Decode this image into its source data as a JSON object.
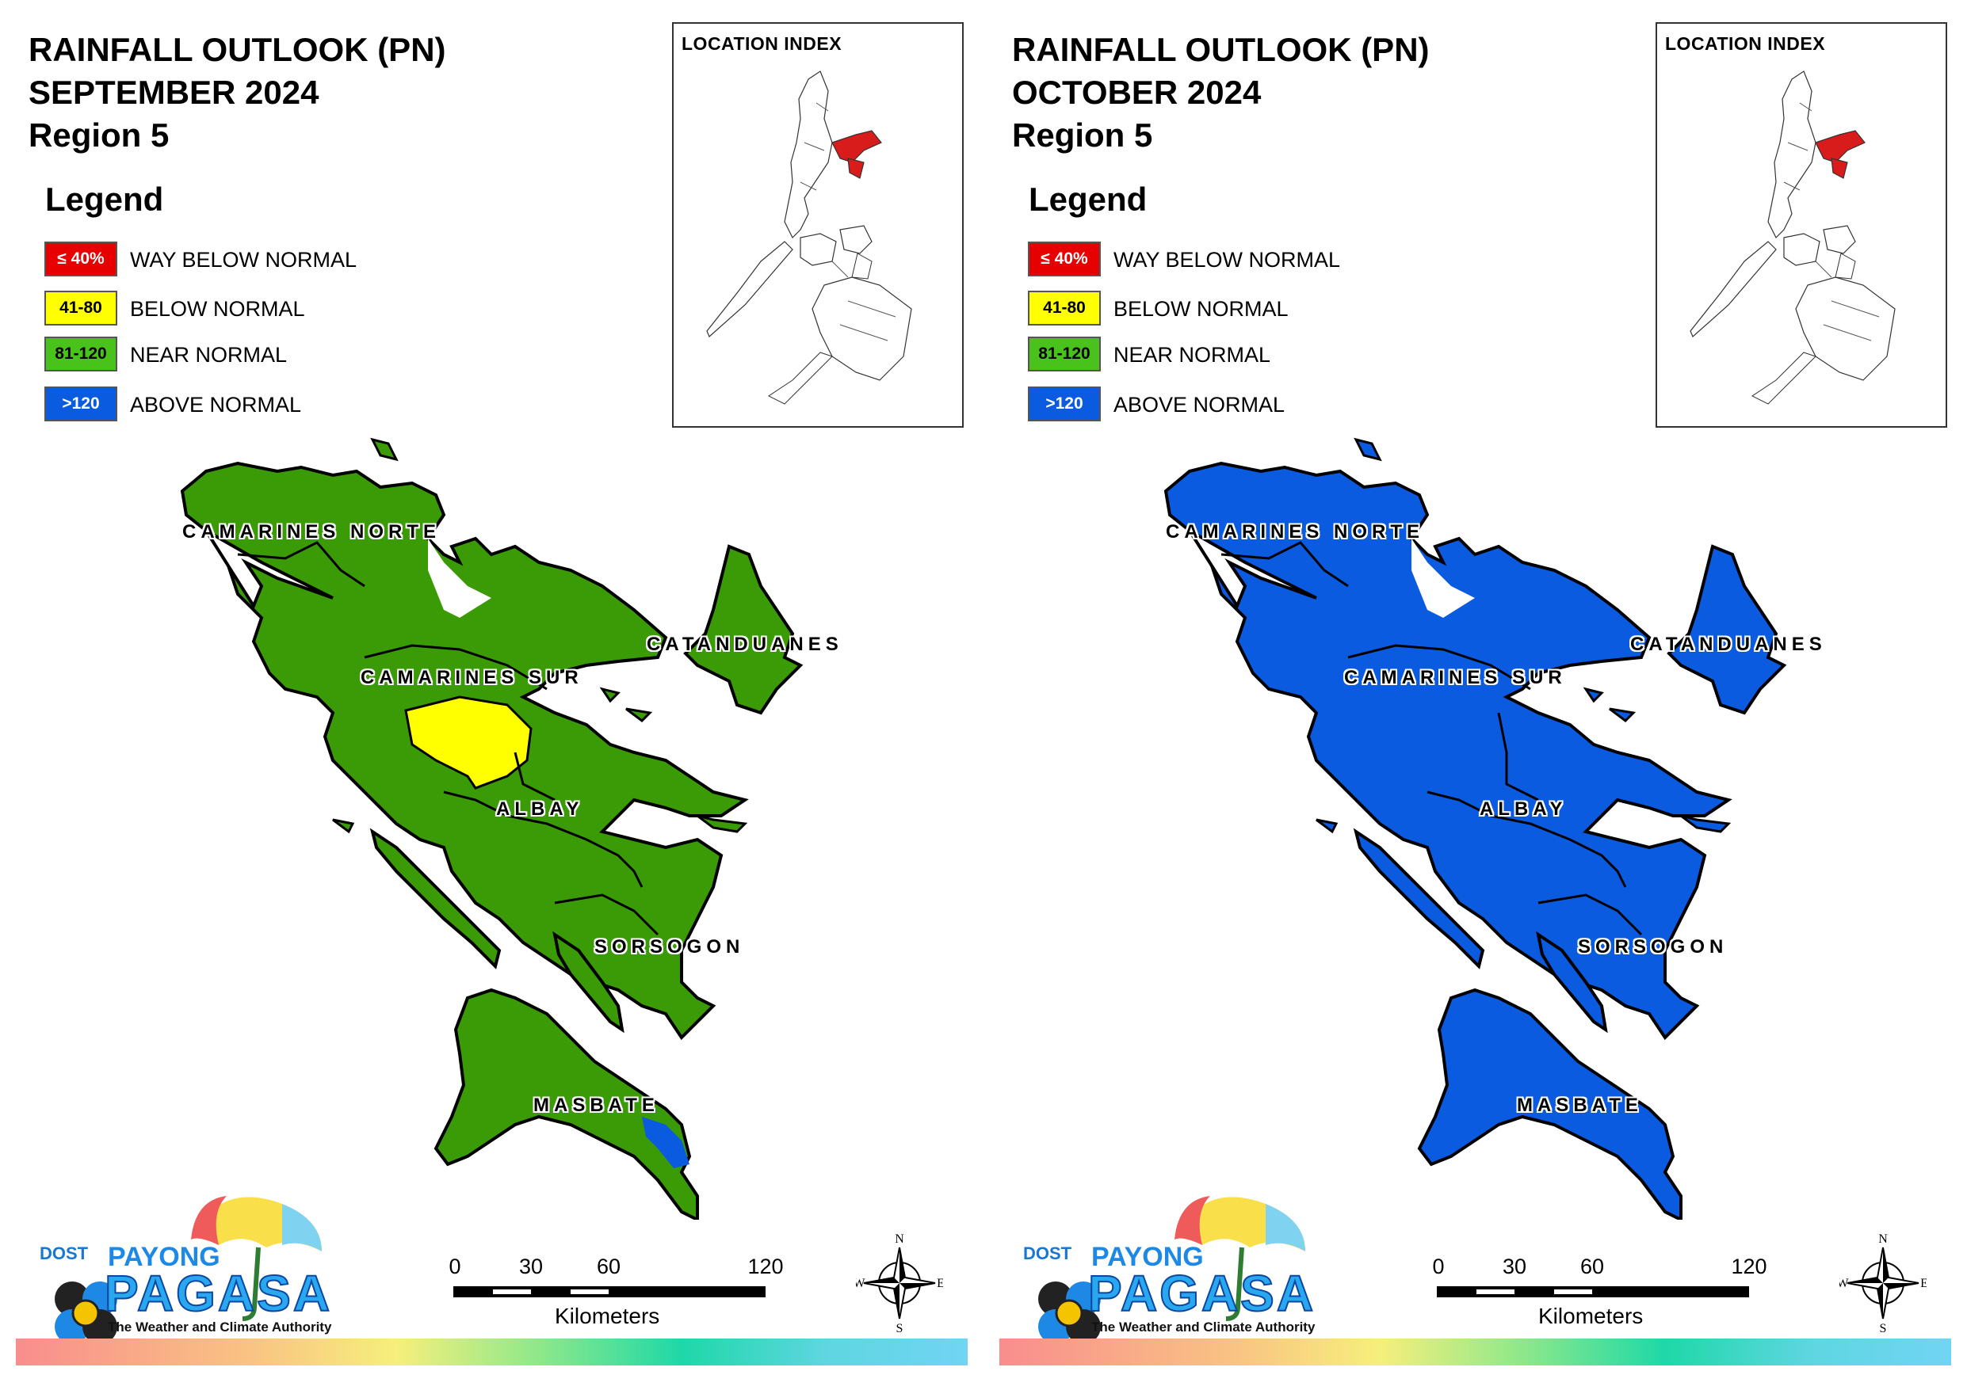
{
  "colors": {
    "way_below_normal": "#e60000",
    "below_normal": "#ffff00",
    "near_normal": "#3a9b07",
    "above_normal": "#0b5be0"
  },
  "legend": {
    "title": "Legend",
    "items": [
      {
        "range": "≤ 40%",
        "label": "WAY BELOW NORMAL",
        "color_key": "way_below_normal"
      },
      {
        "range": "41-80",
        "label": "BELOW NORMAL",
        "color_key": "below_normal"
      },
      {
        "range": "81-120",
        "label": "NEAR NORMAL",
        "color_key": "near_normal"
      },
      {
        "range": ">120",
        "label": "ABOVE NORMAL",
        "color_key": "above_normal"
      }
    ]
  },
  "inset": {
    "title": "LOCATION INDEX",
    "highlight_color": "#d81b1b"
  },
  "province_labels": [
    "CAMARINES NORTE",
    "CATANDUANES",
    "CAMARINES SUR",
    "ALBAY",
    "SORSOGON",
    "MASBATE"
  ],
  "scale": {
    "ticks": [
      "0",
      "30",
      "60",
      "120"
    ],
    "units": "Kilometers"
  },
  "compass": {
    "n": "N",
    "s": "S",
    "e": "E",
    "w": "W"
  },
  "logo": {
    "dost": "DOST",
    "payong": "PAYONG",
    "pagasa": "PAGASA",
    "tagline": "The Weather and Climate Authority"
  },
  "maps": [
    {
      "title_line1": "RAINFALL OUTLOOK (PN)",
      "title_line2": "SEPTEMBER 2024",
      "title_line3": "Region 5",
      "base_color": "near_normal",
      "patches": [
        "below_normal_camarines_sur",
        "above_normal_masbate_tip"
      ]
    },
    {
      "title_line1": "RAINFALL OUTLOOK (PN)",
      "title_line2": "OCTOBER 2024",
      "title_line3": "Region 5",
      "base_color": "above_normal",
      "patches": []
    }
  ]
}
